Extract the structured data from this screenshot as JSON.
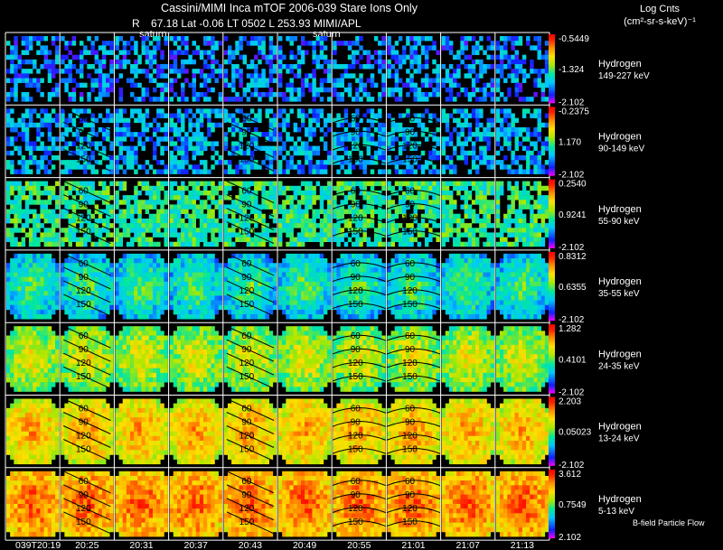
{
  "header": {
    "title": "Cassini/MIMI Inca mTOF  2006-039    Stare    Ions Only",
    "r_label": "R",
    "orbit_info": "67.18 Lat -0.06 LT 0502 L         253.93  MIMI/APL",
    "saturn_marks": [
      "saturn",
      "saturn"
    ],
    "units_title": "Log Cnts",
    "units": "(cm²-sr-s-keV)⁻¹"
  },
  "footer_note": "B-field Particle Flow",
  "colors": {
    "background": "#000000",
    "grid_line": "#ffffff",
    "contour": "#000000",
    "colorscale": [
      "#ff00ff",
      "#1020ff",
      "#00c8ff",
      "#00e8a0",
      "#a8e800",
      "#ffe000",
      "#ff9000",
      "#ff2000",
      "#ff0000"
    ]
  },
  "chart_data": {
    "type": "heatmap",
    "description_axis_x": "time",
    "x": [
      "039T20:19",
      "20:25",
      "20:31",
      "20:37",
      "20:43",
      "20:49",
      "20:55",
      "21:01",
      "21:07",
      "21:13"
    ],
    "contour_labels": [
      "60",
      "90",
      "120",
      "150"
    ],
    "rows": [
      {
        "species": "Hydrogen",
        "energy": "149-227 keV",
        "cbar_top": "-0.5449",
        "cbar_mid": "-1.324",
        "cbar_bottom": "-2.102",
        "intensity": 0.1
      },
      {
        "species": "Hydrogen",
        "energy": "90-149 keV",
        "cbar_top": "-0.2375",
        "cbar_mid": "1.170",
        "cbar_bottom": "-2.102",
        "intensity": 0.15
      },
      {
        "species": "Hydrogen",
        "energy": "55-90 keV",
        "cbar_top": "0.2540",
        "cbar_mid": "0.9241",
        "cbar_bottom": "-2.102",
        "intensity": 0.32
      },
      {
        "species": "Hydrogen",
        "energy": "35-55 keV",
        "cbar_top": "0.8312",
        "cbar_mid": "0.6355",
        "cbar_bottom": "-2.102",
        "intensity": 0.45
      },
      {
        "species": "Hydrogen",
        "energy": "24-35 keV",
        "cbar_top": "1.282",
        "cbar_mid": "0.4101",
        "cbar_bottom": "-2.102",
        "intensity": 0.62
      },
      {
        "species": "Hydrogen",
        "energy": "13-24 keV",
        "cbar_top": "2.203",
        "cbar_mid": "0.05023",
        "cbar_bottom": "-2.102",
        "intensity": 0.75
      },
      {
        "species": "Hydrogen",
        "energy": "5-13 keV",
        "cbar_top": "3.612",
        "cbar_mid": "0.7549",
        "cbar_bottom": "2.102",
        "intensity": 0.85
      }
    ]
  }
}
